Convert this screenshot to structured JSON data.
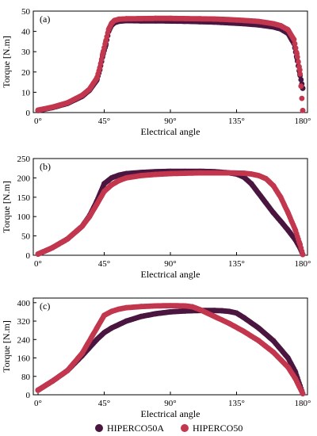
{
  "legend": {
    "items": [
      {
        "name": "HIPERCO50A",
        "color": "#4a1640"
      },
      {
        "name": "HIPERCO50",
        "color": "#c2364e"
      }
    ]
  },
  "chart_data": [
    {
      "type": "scatter",
      "panel_label": "(a)",
      "xlabel": "Electrical angle",
      "ylabel": "Torque [N.m]",
      "xlim": [
        0,
        180
      ],
      "ylim": [
        0,
        50
      ],
      "xticks": [
        0,
        45,
        90,
        135,
        180
      ],
      "xtick_labels": [
        "0°",
        "45°",
        "90°",
        "135°",
        "180°"
      ],
      "yticks": [
        0,
        10,
        20,
        30,
        40,
        50
      ],
      "ytick_labels": [
        "0",
        "10",
        "20",
        "30",
        "40",
        "50"
      ],
      "grid": false,
      "series": [
        {
          "name": "HIPERCO50A",
          "color": "#4a1640",
          "x": [
            0,
            10,
            20,
            30,
            35,
            40,
            42,
            44,
            46,
            48,
            50,
            52,
            55,
            60,
            70,
            80,
            90,
            100,
            110,
            120,
            130,
            140,
            150,
            160,
            165,
            170,
            174,
            176,
            178,
            180
          ],
          "y": [
            1,
            2.5,
            4.5,
            8,
            11,
            16,
            21,
            28,
            33,
            40,
            43,
            44.3,
            45,
            45.3,
            45.2,
            45.2,
            45.1,
            45,
            44.8,
            44.6,
            44.2,
            43.8,
            43.2,
            42.2,
            41.2,
            39,
            34,
            27,
            19,
            12
          ]
        },
        {
          "name": "HIPERCO50",
          "color": "#c2364e",
          "x": [
            0,
            10,
            20,
            30,
            35,
            40,
            42,
            44,
            46,
            48,
            50,
            52,
            55,
            60,
            70,
            80,
            90,
            100,
            110,
            120,
            130,
            140,
            150,
            160,
            165,
            170,
            174,
            176,
            178,
            180
          ],
          "y": [
            1.2,
            2.7,
            4.8,
            8.5,
            11.5,
            17,
            22,
            29,
            35,
            41,
            44,
            45.4,
            46,
            46.2,
            46.3,
            46.4,
            46.4,
            46.3,
            46.2,
            46.1,
            45.8,
            45.4,
            44.9,
            43.8,
            42.8,
            40.8,
            36,
            29,
            21,
            1
          ]
        }
      ]
    },
    {
      "type": "scatter",
      "panel_label": "(b)",
      "xlabel": "Electrical angle",
      "ylabel": "Torque [N.m]",
      "xlim": [
        0,
        180
      ],
      "ylim": [
        0,
        250
      ],
      "xticks": [
        0,
        45,
        90,
        135,
        180
      ],
      "xtick_labels": [
        "0°",
        "45°",
        "90°",
        "135°",
        "180°"
      ],
      "yticks": [
        0,
        50,
        100,
        150,
        200,
        250
      ],
      "ytick_labels": [
        "0",
        "50",
        "100",
        "150",
        "200",
        "250"
      ],
      "grid": false,
      "series": [
        {
          "name": "HIPERCO50A",
          "color": "#4a1640",
          "x": [
            0,
            10,
            20,
            30,
            35,
            40,
            45,
            50,
            55,
            60,
            70,
            80,
            90,
            100,
            110,
            120,
            130,
            135,
            140,
            145,
            150,
            155,
            160,
            165,
            170,
            175,
            178,
            180
          ],
          "y": [
            3,
            20,
            42,
            75,
            102,
            140,
            185,
            200,
            207,
            211,
            214,
            216,
            217,
            217,
            217,
            216,
            213,
            210,
            202,
            185,
            160,
            135,
            110,
            88,
            65,
            40,
            20,
            2
          ]
        },
        {
          "name": "HIPERCO50",
          "color": "#c2364e",
          "x": [
            0,
            10,
            20,
            30,
            35,
            40,
            45,
            50,
            55,
            60,
            70,
            80,
            90,
            100,
            110,
            120,
            130,
            140,
            145,
            150,
            155,
            160,
            165,
            170,
            175,
            178,
            180
          ],
          "y": [
            3,
            20,
            42,
            75,
            100,
            132,
            165,
            182,
            193,
            200,
            206,
            209,
            211,
            212,
            213,
            213,
            213,
            212,
            210,
            206,
            198,
            180,
            150,
            110,
            65,
            30,
            2
          ]
        }
      ]
    },
    {
      "type": "scatter",
      "panel_label": "(c)",
      "xlabel": "Electrical angle",
      "ylabel": "Torque [N.m]",
      "xlim": [
        0,
        180
      ],
      "ylim": [
        0,
        420
      ],
      "xticks": [
        0,
        45,
        90,
        135,
        180
      ],
      "xtick_labels": [
        "0°",
        "45°",
        "90°",
        "135°",
        "180°"
      ],
      "yticks": [
        0,
        80,
        160,
        240,
        320,
        400
      ],
      "ytick_labels": [
        "0",
        "80",
        "160",
        "240",
        "320",
        "400"
      ],
      "grid": false,
      "series": [
        {
          "name": "HIPERCO50A",
          "color": "#4a1640",
          "x": [
            0,
            10,
            20,
            30,
            40,
            45,
            50,
            60,
            70,
            80,
            90,
            100,
            110,
            120,
            125,
            130,
            135,
            140,
            150,
            160,
            170,
            175,
            180
          ],
          "y": [
            20,
            60,
            105,
            170,
            240,
            270,
            290,
            320,
            340,
            352,
            360,
            364,
            366,
            366,
            365,
            362,
            355,
            335,
            290,
            235,
            160,
            100,
            5
          ]
        },
        {
          "name": "HIPERCO50",
          "color": "#c2364e",
          "x": [
            0,
            10,
            20,
            30,
            40,
            45,
            50,
            55,
            60,
            70,
            80,
            90,
            100,
            105,
            110,
            115,
            120,
            130,
            140,
            150,
            160,
            170,
            175,
            180
          ],
          "y": [
            20,
            60,
            105,
            180,
            290,
            345,
            362,
            372,
            378,
            383,
            386,
            387,
            386,
            382,
            370,
            355,
            340,
            310,
            275,
            235,
            185,
            120,
            70,
            5
          ]
        }
      ]
    }
  ]
}
